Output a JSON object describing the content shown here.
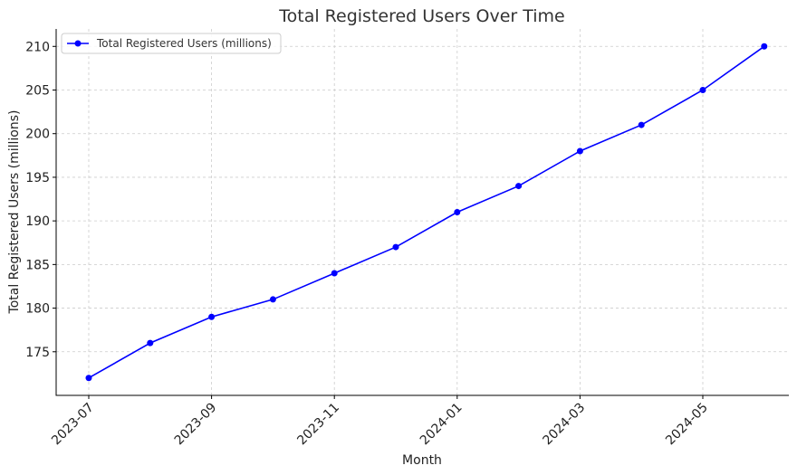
{
  "chart_data": {
    "type": "line",
    "title": "Total Registered Users Over Time",
    "xlabel": "Month",
    "ylabel": "Total Registered Users (millions)",
    "x": [
      "2023-07",
      "2023-08",
      "2023-09",
      "2023-10",
      "2023-11",
      "2023-12",
      "2024-01",
      "2024-02",
      "2024-03",
      "2024-04",
      "2024-05",
      "2024-06"
    ],
    "x_tick_labels": [
      "2023-07",
      "2023-09",
      "2023-11",
      "2024-01",
      "2024-03",
      "2024-05"
    ],
    "y_ticks": [
      175,
      180,
      185,
      190,
      195,
      200,
      205,
      210
    ],
    "ylim": [
      170,
      212
    ],
    "grid": true,
    "legend_position": "top-left",
    "series": [
      {
        "name": "Total Registered Users (millions)",
        "color": "#0000ff",
        "marker": "circle",
        "values": [
          172,
          176,
          179,
          181,
          184,
          187,
          191,
          194,
          198,
          201,
          205,
          210
        ]
      }
    ]
  }
}
